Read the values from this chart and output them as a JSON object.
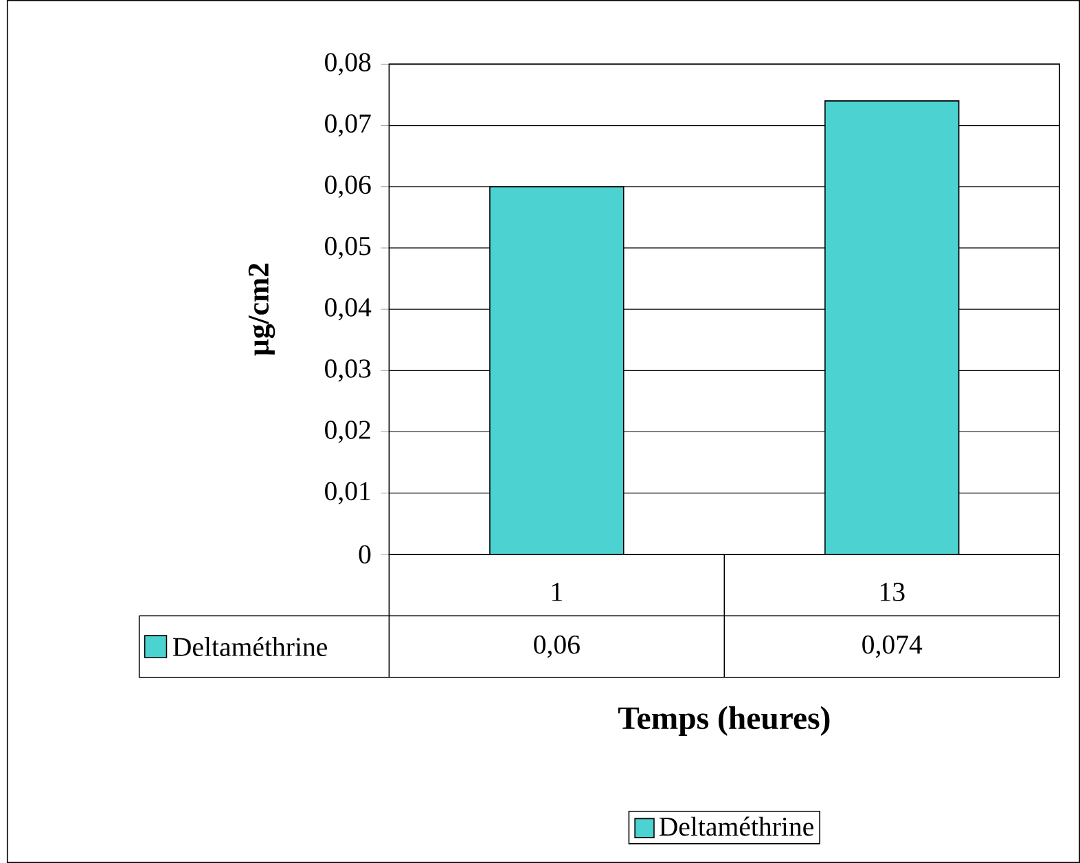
{
  "chart_data": {
    "type": "bar",
    "xlabel": "Temps (heures)",
    "ylabel": "µg/cm2",
    "categories": [
      "1",
      "13"
    ],
    "series": [
      {
        "name": "Deltaméthrine",
        "color": "#4dd2d2",
        "values": [
          0.06,
          0.074
        ],
        "value_labels": [
          "0,06",
          "0,074"
        ]
      }
    ],
    "ylim": [
      0,
      0.08
    ],
    "yticks": [
      0,
      {
        "value": 0.01,
        "label": "0,01"
      },
      {
        "value": 0.02,
        "label": "0,02"
      },
      {
        "value": 0.03,
        "label": "0,03"
      },
      {
        "value": 0.04,
        "label": "0,04"
      },
      {
        "value": 0.05,
        "label": "0,05"
      },
      {
        "value": 0.06,
        "label": "0,06"
      },
      {
        "value": 0.07,
        "label": "0,07"
      },
      {
        "value": 0.08,
        "label": "0,08"
      }
    ],
    "grid": "y",
    "legend": "bottom"
  }
}
